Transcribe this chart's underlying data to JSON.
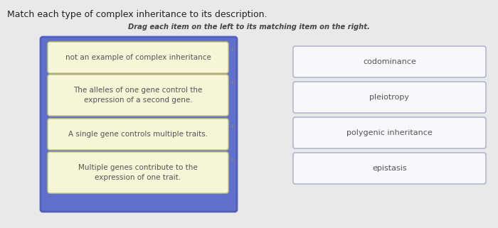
{
  "title": "Match each type of complex inheritance to its description.",
  "subtitle": "Drag each item on the left to its matching item on the right.",
  "left_items": [
    "not an example of complex inheritance",
    "The alleles of one gene control the\nexpression of a second gene.",
    "A single gene controls multiple traits.",
    "Multiple genes contribute to the\nexpression of one trait."
  ],
  "right_items": [
    "codominance",
    "pleiotropy",
    "polygenic inheritance",
    "epistasis"
  ],
  "bg_color": "#e9e9e9",
  "left_panel_bg": "#6070cc",
  "left_panel_edge": "#5060bb",
  "left_item_bg": "#f5f5d8",
  "left_item_border": "#c8c870",
  "right_item_bg": "#f8f8fc",
  "right_item_border": "#aaaacc",
  "title_color": "#222222",
  "subtitle_color": "#444444",
  "item_text_color": "#555555",
  "plus_color": "#888888",
  "title_fontsize": 9.0,
  "subtitle_fontsize": 7.2,
  "item_fontsize": 7.5
}
